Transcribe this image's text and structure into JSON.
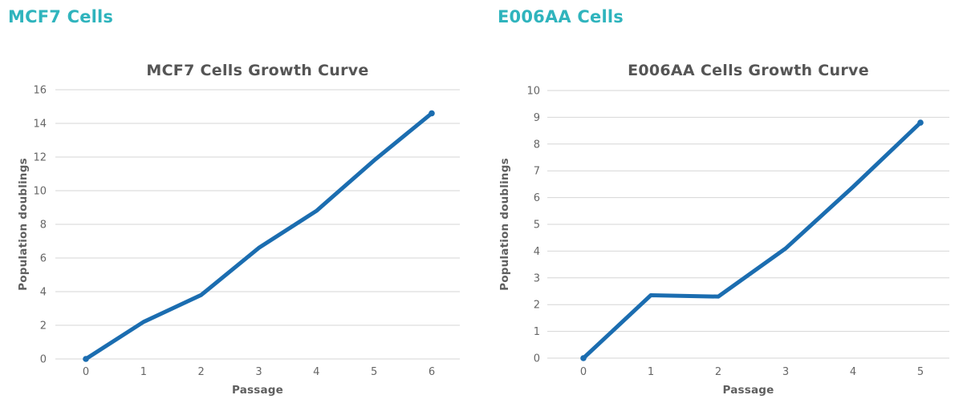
{
  "panels": [
    {
      "header": "MCF7 Cells"
    },
    {
      "header": "E006AA Cells"
    }
  ],
  "theme": {
    "background": "#ffffff",
    "header_color": "#2fb4bd",
    "title_color": "#555555",
    "tick_color": "#666666",
    "axis_label_color": "#5f5f5f",
    "grid_color": "#d6d6d6",
    "line_color": "#1b6db0"
  },
  "chart_data": [
    {
      "type": "line",
      "title": "MCF7 Cells Growth Curve",
      "xlabel": "Passage",
      "ylabel": "Population doublings",
      "x": [
        0,
        1,
        2,
        3,
        4,
        5,
        6
      ],
      "series": [
        {
          "name": "MCF7",
          "values": [
            0,
            2.2,
            3.8,
            6.6,
            8.8,
            11.8,
            14.6
          ]
        }
      ],
      "ylim": [
        0,
        16
      ],
      "ytick_step": 2,
      "xlim": [
        0,
        6
      ],
      "grid": "horizontal",
      "legend": "none",
      "markers": "endpoints",
      "line_color": "#1b6db0"
    },
    {
      "type": "line",
      "title": "E006AA Cells Growth Curve",
      "xlabel": "Passage",
      "ylabel": "Population doublings",
      "x": [
        0,
        1,
        2,
        3,
        4,
        5
      ],
      "series": [
        {
          "name": "E006AA",
          "values": [
            0,
            2.35,
            2.3,
            4.1,
            6.4,
            8.8
          ]
        }
      ],
      "ylim": [
        0,
        10
      ],
      "ytick_step": 1,
      "xlim": [
        0,
        5
      ],
      "grid": "horizontal",
      "legend": "none",
      "markers": "endpoints",
      "line_color": "#1b6db0"
    }
  ]
}
